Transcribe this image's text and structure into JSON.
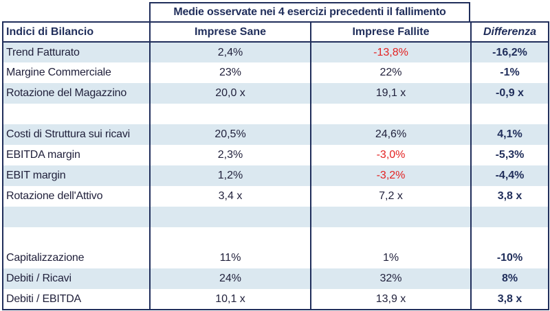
{
  "super_header": "Medie osservate nei 4 esercizi precedenti il fallimento",
  "headers": {
    "label": "Indici di Bilancio",
    "sane": "Imprese Sane",
    "failed": "Imprese Fallite",
    "diff": "Differenza"
  },
  "colors": {
    "navy": "#1f2d5a",
    "shade": "#dbe8f0",
    "negative": "#e32121"
  },
  "rows": [
    {
      "label": "Trend Fatturato",
      "sane": "2,4%",
      "failed": "-13,8%",
      "diff": "-16,2%",
      "failed_negative": true
    },
    {
      "label": "Margine Commerciale",
      "sane": "23%",
      "failed": "22%",
      "diff": "-1%",
      "failed_negative": false
    },
    {
      "label": "Rotazione del Magazzino",
      "sane": "20,0 x",
      "failed": "19,1 x",
      "diff": "-0,9 x",
      "failed_negative": false
    },
    {
      "label": "",
      "sane": "",
      "failed": "",
      "diff": "",
      "failed_negative": false
    },
    {
      "label": "Costi di Struttura sui ricavi",
      "sane": "20,5%",
      "failed": "24,6%",
      "diff": "4,1%",
      "failed_negative": false
    },
    {
      "label": "EBITDA margin",
      "sane": "2,3%",
      "failed": "-3,0%",
      "diff": "-5,3%",
      "failed_negative": true
    },
    {
      "label": "EBIT margin",
      "sane": "1,2%",
      "failed": "-3,2%",
      "diff": "-4,4%",
      "failed_negative": true
    },
    {
      "label": "Rotazione dell'Attivo",
      "sane": "3,4 x",
      "failed": "7,2 x",
      "diff": "3,8 x",
      "failed_negative": false
    },
    {
      "label": "",
      "sane": "",
      "failed": "",
      "diff": "",
      "failed_negative": false
    },
    {
      "label": "",
      "sane": "",
      "failed": "",
      "diff": "",
      "failed_negative": false
    },
    {
      "label": "Capitalizzazione",
      "sane": "11%",
      "failed": "1%",
      "diff": "-10%",
      "failed_negative": false
    },
    {
      "label": "Debiti / Ricavi",
      "sane": "24%",
      "failed": "32%",
      "diff": "8%",
      "failed_negative": false
    },
    {
      "label": "Debiti / EBITDA",
      "sane": "10,1 x",
      "failed": "13,9 x",
      "diff": "3,8 x",
      "failed_negative": false
    }
  ]
}
